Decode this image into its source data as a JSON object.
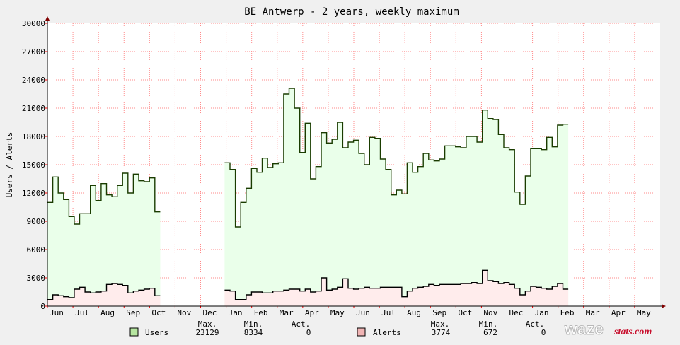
{
  "chart_data": {
    "type": "area",
    "title": "BE Antwerp - 2 years, weekly maximum",
    "ylabel": "Users / Alerts",
    "xlabel": "",
    "ylim": [
      0,
      30000
    ],
    "yticks": [
      0,
      3000,
      6000,
      9000,
      12000,
      15000,
      18000,
      21000,
      24000,
      27000,
      30000
    ],
    "xticks": [
      "Jun",
      "Jul",
      "Aug",
      "Sep",
      "Oct",
      "Nov",
      "Dec",
      "Jan",
      "Feb",
      "Mar",
      "Apr",
      "May",
      "Jun",
      "Jul",
      "Aug",
      "Sep",
      "Oct",
      "Nov",
      "Dec",
      "Jan",
      "Feb",
      "Mar",
      "Apr",
      "May"
    ],
    "grid": true,
    "series": [
      {
        "name": "Users",
        "color": "#1a3c00",
        "fill": "#eaffea",
        "values": [
          11000,
          13700,
          12000,
          11300,
          9500,
          8700,
          9800,
          9800,
          12800,
          11200,
          13000,
          11800,
          11600,
          12800,
          14100,
          12000,
          14000,
          13300,
          13200,
          13600,
          10000,
          null,
          null,
          null,
          null,
          null,
          null,
          null,
          null,
          null,
          null,
          null,
          null,
          15200,
          14500,
          8400,
          11000,
          12500,
          14600,
          14200,
          15700,
          14700,
          15100,
          15200,
          22500,
          23100,
          21000,
          16300,
          19400,
          13500,
          14800,
          18400,
          17300,
          17700,
          19500,
          16800,
          17400,
          17600,
          16200,
          15000,
          17900,
          17800,
          15600,
          14500,
          11800,
          12300,
          11900,
          15200,
          14200,
          14800,
          16200,
          15500,
          15400,
          15600,
          17000,
          17000,
          16900,
          16800,
          18000,
          18000,
          17400,
          20800,
          19900,
          19800,
          18200,
          16800,
          16600,
          12100,
          10800,
          13800,
          16700,
          16700,
          16600,
          17900,
          16900,
          19200,
          19300
        ]
      },
      {
        "name": "Alerts",
        "color": "#000000",
        "fill": "#ffecec",
        "values": [
          700,
          1200,
          1100,
          1000,
          900,
          1800,
          2000,
          1500,
          1400,
          1500,
          1600,
          2300,
          2400,
          2300,
          2200,
          1400,
          1600,
          1700,
          1800,
          1900,
          1100,
          null,
          null,
          null,
          null,
          null,
          null,
          null,
          null,
          null,
          null,
          null,
          null,
          1700,
          1600,
          700,
          700,
          1200,
          1500,
          1500,
          1400,
          1400,
          1600,
          1600,
          1700,
          1800,
          1800,
          1600,
          1800,
          1500,
          1600,
          3000,
          1700,
          1800,
          2000,
          2900,
          1900,
          1800,
          1900,
          2000,
          1900,
          1900,
          2000,
          2000,
          2000,
          2000,
          1000,
          1600,
          1900,
          2000,
          2100,
          2300,
          2200,
          2300,
          2300,
          2300,
          2300,
          2400,
          2400,
          2500,
          2400,
          3800,
          2700,
          2600,
          2400,
          2500,
          2300,
          1900,
          1200,
          1600,
          2100,
          2000,
          1900,
          1800,
          2100,
          2400,
          1800
        ]
      }
    ]
  },
  "legend": {
    "headers": [
      "Max.",
      "Min.",
      "Act."
    ],
    "rows": [
      {
        "label": "Users",
        "swatch": "#b6e6a0",
        "max": "23129",
        "min": "8334",
        "act": "0"
      },
      {
        "label": "Alerts",
        "swatch": "#f0b4b4",
        "max": "3774",
        "min": "672",
        "act": "0"
      }
    ]
  },
  "logo": {
    "text_main": "waze",
    "text_sub": "stats.com"
  }
}
